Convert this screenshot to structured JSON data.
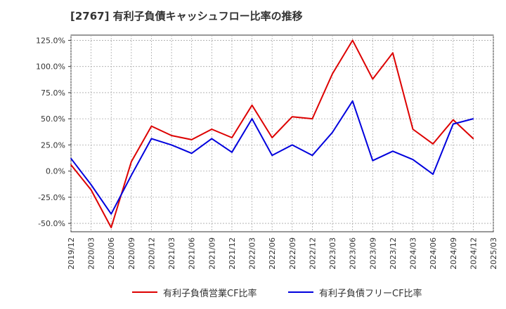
{
  "title": "[2767]  有利子負債キャッシュフロー比率の推移",
  "colors": {
    "series_1": "#dd0000",
    "series_2": "#0000dd",
    "grid": "#aaaaaa",
    "axis": "#333333",
    "text": "#333333"
  },
  "chart_data": {
    "type": "line",
    "title": "[2767]  有利子負債キャッシュフロー比率の推移",
    "xlabel": "",
    "ylabel": "",
    "x": [
      "2019/12",
      "2020/03",
      "2020/06",
      "2020/09",
      "2020/12",
      "2021/03",
      "2021/06",
      "2021/09",
      "2021/12",
      "2022/03",
      "2022/06",
      "2022/09",
      "2022/12",
      "2023/03",
      "2023/06",
      "2023/09",
      "2023/12",
      "2024/03",
      "2024/06",
      "2024/09",
      "2024/12",
      "2025/03"
    ],
    "y_ticks": [
      "125.0%",
      "100.0%",
      "75.0%",
      "50.0%",
      "25.0%",
      "0.0%",
      "-25.0%",
      "-50.0%"
    ],
    "y_tick_values": [
      125,
      100,
      75,
      50,
      25,
      0,
      -25,
      -50
    ],
    "ylim": [
      -58,
      130
    ],
    "grid": true,
    "legend_position": "bottom",
    "series": [
      {
        "name": "有利子負債営業CF比率",
        "color": "#dd0000",
        "values": [
          6,
          -18,
          -54,
          9,
          43,
          34,
          30,
          40,
          32,
          63,
          32,
          52,
          50,
          93,
          125,
          88,
          113,
          40,
          26,
          49,
          31,
          null
        ]
      },
      {
        "name": "有利子負債フリーCF比率",
        "color": "#0000dd",
        "values": [
          12,
          -13,
          -41,
          -4,
          31,
          25,
          17,
          31,
          18,
          50,
          15,
          25,
          15,
          37,
          67,
          10,
          19,
          11,
          -3,
          45,
          50,
          null
        ]
      }
    ]
  }
}
